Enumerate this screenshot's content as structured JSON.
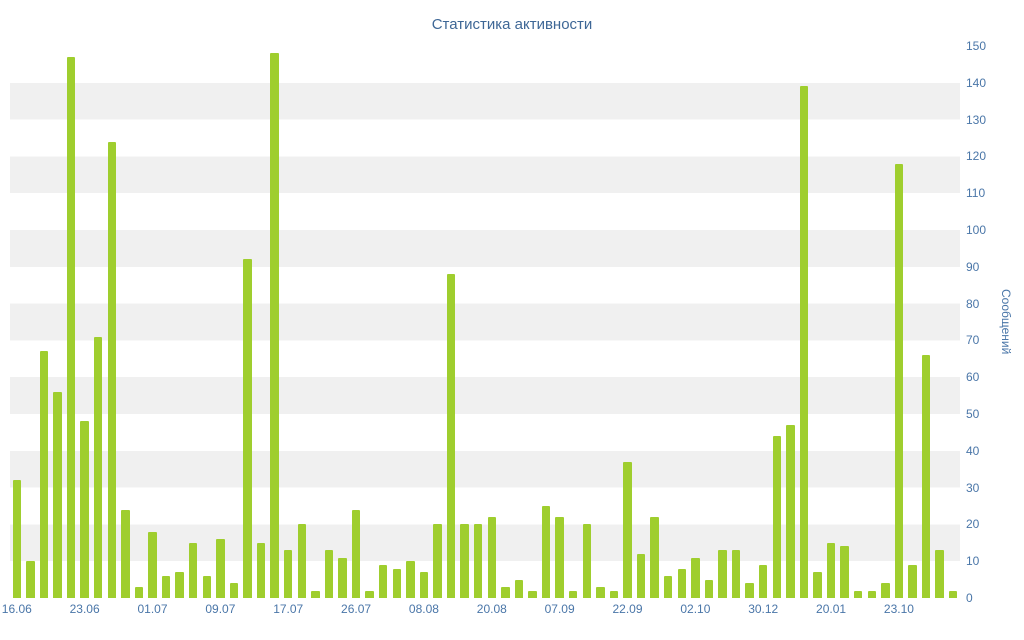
{
  "page": {
    "title": "Статистика активности"
  },
  "chart_data": {
    "type": "bar",
    "title": "Статистика активности",
    "xlabel": "",
    "ylabel": "Сообщений",
    "ylim": [
      0,
      150
    ],
    "y_tick_step": 10,
    "legend": "none",
    "grid": "alternating horizontal bands every 10 units",
    "values": [
      32,
      10,
      67,
      56,
      147,
      48,
      71,
      124,
      24,
      3,
      18,
      6,
      7,
      15,
      6,
      16,
      4,
      92,
      15,
      148,
      13,
      20,
      2,
      13,
      11,
      24,
      2,
      9,
      8,
      10,
      7,
      20,
      88,
      20,
      20,
      22,
      3,
      5,
      2,
      25,
      22,
      2,
      20,
      3,
      2,
      37,
      12,
      22,
      6,
      8,
      11,
      5,
      13,
      13,
      4,
      9,
      44,
      47,
      139,
      7,
      15,
      14,
      2,
      2,
      4,
      118,
      9,
      66,
      13,
      2
    ],
    "x_tick_labels": [
      "16.06",
      "23.06",
      "01.07",
      "09.07",
      "17.07",
      "26.07",
      "08.08",
      "20.08",
      "07.09",
      "22.09",
      "02.10",
      "30.12",
      "20.01",
      "23.10"
    ],
    "x_tick_positions": [
      0,
      5,
      10,
      15,
      20,
      25,
      30,
      35,
      40,
      45,
      50,
      55,
      60,
      65
    ],
    "colors": {
      "bar": "#9fce2e",
      "band": "#f0f0f0",
      "title_text": "#3e6796",
      "axis_text": "#4a76a8"
    }
  }
}
